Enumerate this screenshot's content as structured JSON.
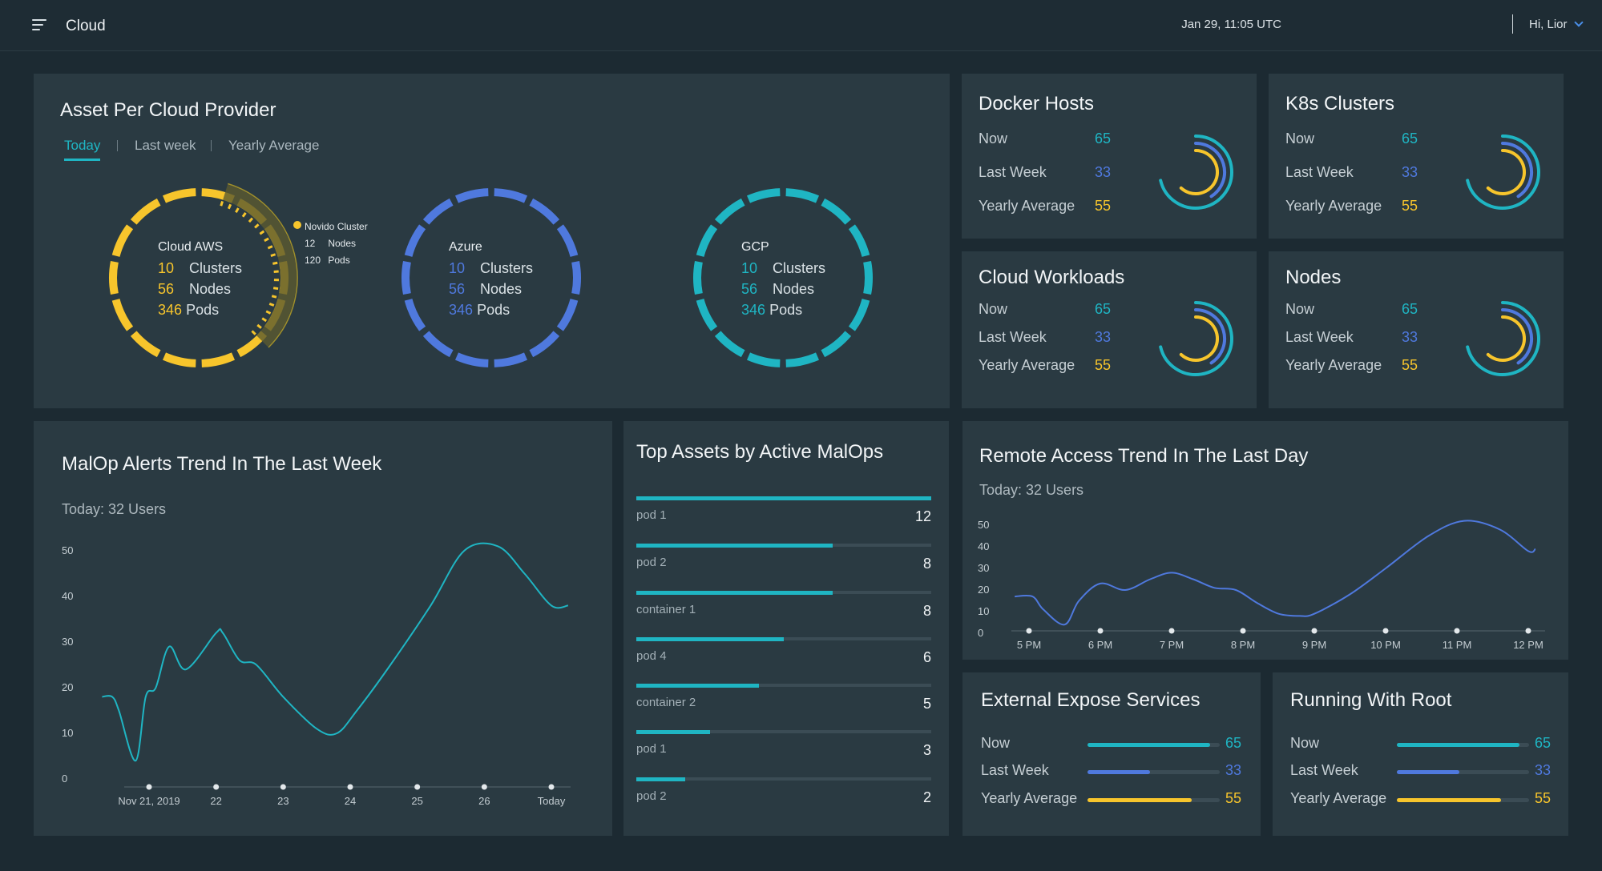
{
  "header": {
    "title": "Cloud",
    "datetime": "Jan 29, 11:05 UTC",
    "user": "Hi, Lior"
  },
  "colors": {
    "teal": "#1fb5c3",
    "blue": "#4f79de",
    "yellow": "#f7c52c",
    "panel": "#2a3a42",
    "background": "#1c2a32"
  },
  "asset_per_cloud": {
    "title": "Asset Per Cloud Provider",
    "tabs": [
      {
        "label": "Today",
        "active": true
      },
      {
        "label": "Last week",
        "active": false
      },
      {
        "label": "Yearly Average",
        "active": false
      }
    ],
    "providers": [
      {
        "name": "Cloud AWS",
        "clusters": "10",
        "nodes": "56",
        "pods": "346",
        "color": "#f7c52c"
      },
      {
        "name": "Azure",
        "clusters": "10",
        "nodes": "56",
        "pods": "346",
        "color": "#4f79de"
      },
      {
        "name": "GCP",
        "clusters": "10",
        "nodes": "56",
        "pods": "346",
        "color": "#1fb5c3"
      }
    ],
    "labels": {
      "clusters": "Clusters",
      "nodes": "Nodes",
      "pods": "Pods"
    },
    "highlight": {
      "name": "Novido Cluster",
      "nodes": "12",
      "nodes_label": "Nodes",
      "pods": "120",
      "pods_label": "Pods"
    }
  },
  "stat_cards": [
    {
      "title": "Docker Hosts",
      "rows": [
        {
          "label": "Now",
          "value": "65"
        },
        {
          "label": "Last Week",
          "value": "33"
        },
        {
          "label": "Yearly Average",
          "value": "55"
        }
      ]
    },
    {
      "title": "K8s Clusters",
      "rows": [
        {
          "label": "Now",
          "value": "65"
        },
        {
          "label": "Last Week",
          "value": "33"
        },
        {
          "label": "Yearly Average",
          "value": "55"
        }
      ]
    },
    {
      "title": "Cloud Workloads",
      "rows": [
        {
          "label": "Now",
          "value": "65"
        },
        {
          "label": "Last Week",
          "value": "33"
        },
        {
          "label": "Yearly Average",
          "value": "55"
        }
      ]
    },
    {
      "title": "Nodes",
      "rows": [
        {
          "label": "Now",
          "value": "65"
        },
        {
          "label": "Last Week",
          "value": "33"
        },
        {
          "label": "Yearly Average",
          "value": "55"
        }
      ]
    }
  ],
  "malop_trend": {
    "title": "MalOp Alerts Trend In The Last Week",
    "subtitle": "Today: 32 Users"
  },
  "top_assets": {
    "title": "Top Assets by Active MalOps",
    "items": [
      {
        "label": "pod 1",
        "value": "12"
      },
      {
        "label": "pod 2",
        "value": "8"
      },
      {
        "label": "container 1",
        "value": "8"
      },
      {
        "label": "pod 4",
        "value": "6"
      },
      {
        "label": "container 2",
        "value": "5"
      },
      {
        "label": "pod 1",
        "value": "3"
      },
      {
        "label": "pod 2",
        "value": "2"
      }
    ]
  },
  "remote_access": {
    "title": "Remote Access Trend In The Last Day",
    "subtitle": "Today: 32 Users"
  },
  "bar_cards": [
    {
      "title": "External Expose Services",
      "rows": [
        {
          "label": "Now",
          "value": "65"
        },
        {
          "label": "Last Week",
          "value": "33"
        },
        {
          "label": "Yearly Average",
          "value": "55"
        }
      ]
    },
    {
      "title": "Running With Root",
      "rows": [
        {
          "label": "Now",
          "value": "65"
        },
        {
          "label": "Last Week",
          "value": "33"
        },
        {
          "label": "Yearly Average",
          "value": "55"
        }
      ]
    }
  ],
  "chart_data": [
    {
      "type": "line",
      "title": "MalOp Alerts Trend In The Last Week",
      "xlabel": "",
      "ylabel": "",
      "x": [
        "Nov 21, 2019",
        "22",
        "23",
        "24",
        "25",
        "26",
        "Today"
      ],
      "yticks": [
        0,
        10,
        20,
        30,
        40,
        50
      ],
      "ylim": [
        0,
        55
      ],
      "series": [
        {
          "color": "#1fb5c3",
          "points": [
            [
              -0.7,
              18
            ],
            [
              -0.55,
              18
            ],
            [
              -0.45,
              15
            ],
            [
              -0.2,
              4
            ],
            [
              -0.05,
              18
            ],
            [
              0.1,
              20
            ],
            [
              0.3,
              29
            ],
            [
              0.55,
              24
            ],
            [
              1.0,
              32
            ],
            [
              1.1,
              32
            ],
            [
              1.35,
              26
            ],
            [
              1.6,
              25
            ],
            [
              2.0,
              18
            ],
            [
              2.5,
              11
            ],
            [
              2.8,
              10
            ],
            [
              3.1,
              15
            ],
            [
              3.6,
              25
            ],
            [
              4.2,
              38
            ],
            [
              4.7,
              50
            ],
            [
              5.2,
              51
            ],
            [
              5.6,
              45
            ],
            [
              6.0,
              38
            ],
            [
              6.25,
              38
            ]
          ]
        }
      ]
    },
    {
      "type": "line",
      "title": "Remote Access Trend In The Last Day",
      "xlabel": "",
      "ylabel": "",
      "x": [
        "5 PM",
        "6 PM",
        "7 PM",
        "8 PM",
        "9 PM",
        "10 PM",
        "11 PM",
        "12 PM"
      ],
      "yticks": [
        0,
        10,
        20,
        30,
        40,
        50
      ],
      "ylim": [
        0,
        55
      ],
      "series": [
        {
          "color": "#4f79de",
          "points": [
            [
              -0.2,
              17
            ],
            [
              0.05,
              17
            ],
            [
              0.2,
              11
            ],
            [
              0.5,
              4
            ],
            [
              0.7,
              15
            ],
            [
              1.0,
              23
            ],
            [
              1.35,
              20
            ],
            [
              1.7,
              25
            ],
            [
              2.0,
              28
            ],
            [
              2.3,
              25
            ],
            [
              2.6,
              21
            ],
            [
              2.9,
              20
            ],
            [
              3.2,
              14
            ],
            [
              3.5,
              9
            ],
            [
              3.8,
              8
            ],
            [
              4.0,
              9
            ],
            [
              4.5,
              18
            ],
            [
              5.0,
              30
            ],
            [
              5.6,
              45
            ],
            [
              6.1,
              52
            ],
            [
              6.6,
              48
            ],
            [
              7.0,
              38
            ],
            [
              7.1,
              39
            ]
          ]
        }
      ]
    },
    {
      "type": "bar",
      "title": "Top Assets by Active MalOps",
      "categories": [
        "pod 1",
        "pod 2",
        "container 1",
        "pod 4",
        "container 2",
        "pod 1",
        "pod 2"
      ],
      "values": [
        12,
        8,
        8,
        6,
        5,
        3,
        2
      ]
    }
  ]
}
